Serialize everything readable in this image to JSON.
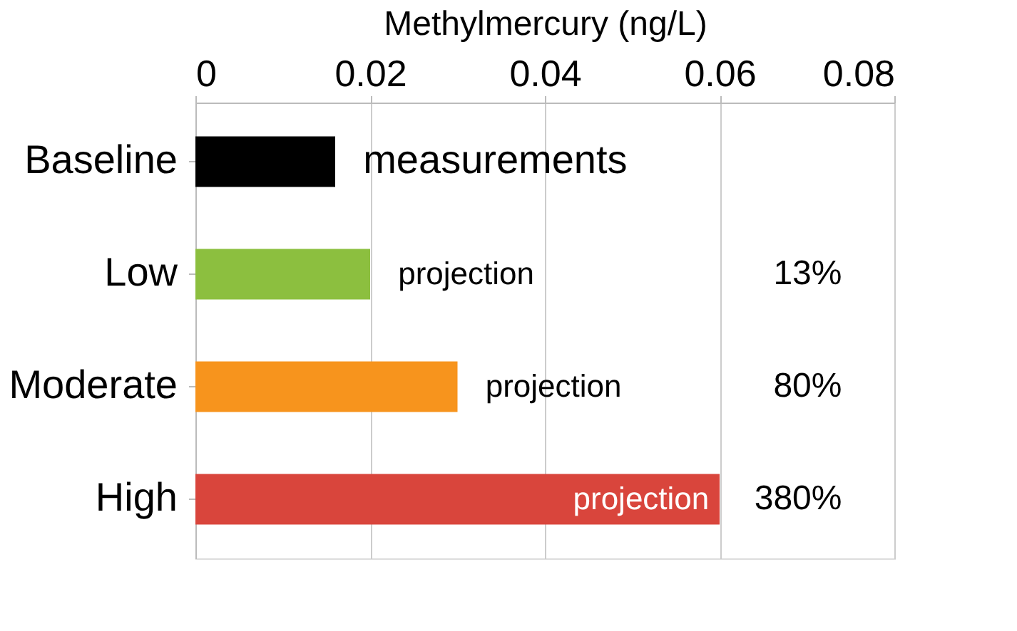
{
  "chart_data": {
    "type": "bar",
    "orientation": "horizontal",
    "xlabel": "Methylmercury (ng/L)",
    "categories": [
      "Baseline",
      "Low",
      "Moderate",
      "High"
    ],
    "values": [
      0.016,
      0.02,
      0.03,
      0.06
    ],
    "colors": [
      "#000000",
      "#8cbf3f",
      "#f7941d",
      "#d9453c"
    ],
    "xlim": [
      0,
      0.08
    ],
    "xticks": [
      0,
      0.02,
      0.04,
      0.06,
      0.08
    ],
    "grid": "x",
    "annotations": [
      "measurements",
      "projection",
      "projection",
      "projection",
      "13%",
      "80%",
      "380%"
    ]
  }
}
